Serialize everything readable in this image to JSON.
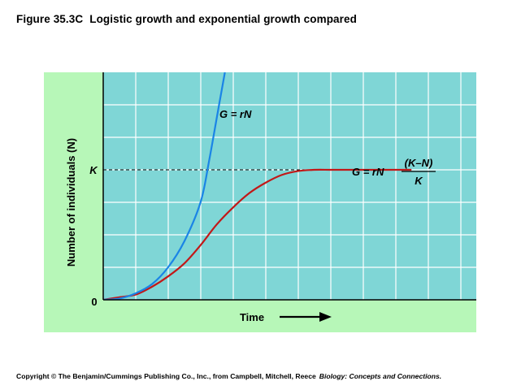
{
  "figure": {
    "number": "Figure 35.3C",
    "title": "Logistic growth and exponential growth compared"
  },
  "copyright": {
    "text": "Copyright © The Benjamin/Cummings Publishing Co., Inc., from Campbell, Mitchell, Reece",
    "book_title": "Biology: Concepts and Connections."
  },
  "chart_data": {
    "type": "line",
    "xlabel": "Time",
    "ylabel": "Number of individuals (N)",
    "y_tick_labels": {
      "zero": "0",
      "carrying_capacity": "K"
    },
    "xlim": [
      0,
      11.5
    ],
    "ylim": [
      0,
      1.75
    ],
    "carrying_capacity": 1.0,
    "grid": true,
    "x_axis_arrow": true,
    "colors": {
      "outer_background": "#b7f7b8",
      "plot_background": "#7fd6d6",
      "grid": "#ffffff",
      "exponential": "#1a84e6",
      "logistic": "#c21818"
    },
    "series": [
      {
        "key": "exponential",
        "label": "G = rN",
        "x": [
          0,
          0.5,
          1,
          1.5,
          2,
          2.5,
          3,
          3.25,
          3.5,
          3.75
        ],
        "y": [
          0,
          0.01,
          0.05,
          0.12,
          0.25,
          0.45,
          0.75,
          1.05,
          1.4,
          1.75
        ]
      },
      {
        "key": "logistic",
        "label_main": "G = rN",
        "label_numerator": "(K–N)",
        "label_denominator": "K",
        "x": [
          0,
          0.5,
          1,
          1.5,
          2,
          2.5,
          3,
          3.5,
          4,
          4.5,
          5,
          5.5,
          6,
          6.5,
          7,
          7.5,
          8,
          8.5,
          9.5
        ],
        "y": [
          0,
          0.02,
          0.04,
          0.1,
          0.18,
          0.28,
          0.42,
          0.58,
          0.71,
          0.82,
          0.9,
          0.96,
          0.99,
          1.0,
          1.0,
          1.0,
          1.0,
          1.0,
          1.0
        ]
      }
    ]
  }
}
